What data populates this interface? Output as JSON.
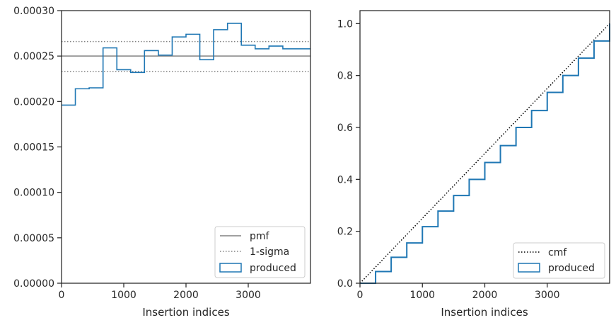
{
  "chart_data": [
    {
      "type": "step",
      "xlabel": "Insertion indices",
      "xlim": [
        0,
        4000
      ],
      "ylim": [
        0,
        0.0003
      ],
      "xticks": [
        0,
        1000,
        2000,
        3000
      ],
      "xtick_labels": [
        "0",
        "1000",
        "2000",
        "3000"
      ],
      "yticks": [
        0,
        5e-05,
        0.0001,
        0.00015,
        0.0002,
        0.00025,
        0.0003
      ],
      "ytick_labels": [
        "0.00000",
        "0.00005",
        "0.00010",
        "0.00015",
        "0.00020",
        "0.00025",
        "0.00030"
      ],
      "reference_lines": [
        {
          "name": "pmf",
          "y": 0.00025,
          "style": "solid",
          "color": "#808080"
        },
        {
          "name": "1-sigma",
          "y": 0.000266,
          "style": "dotted",
          "color": "#808080"
        },
        {
          "name": "1-sigma",
          "y": 0.000233,
          "style": "dotted",
          "color": "#808080"
        }
      ],
      "series": [
        {
          "name": "produced",
          "color": "#1f77b4",
          "bin_edges": [
            0,
            222,
            444,
            667,
            889,
            1111,
            1333,
            1556,
            1778,
            2000,
            2222,
            2444,
            2667,
            2889,
            3111,
            3333,
            3556,
            3778,
            4000
          ],
          "values": [
            0.000196,
            0.000214,
            0.000215,
            0.000259,
            0.000235,
            0.000232,
            0.000256,
            0.000251,
            0.000271,
            0.000274,
            0.000246,
            0.000279,
            0.000286,
            0.000262,
            0.000258,
            0.000261,
            0.000258,
            0.000258
          ]
        }
      ],
      "legend": {
        "placement": "lower-right",
        "entries": [
          "pmf",
          "1-sigma",
          "produced"
        ]
      },
      "grid": false
    },
    {
      "type": "line",
      "xlabel": "Insertion indices",
      "xlim": [
        0,
        4000
      ],
      "ylim": [
        0,
        1.05
      ],
      "xticks": [
        0,
        1000,
        2000,
        3000
      ],
      "xtick_labels": [
        "0",
        "1000",
        "2000",
        "3000"
      ],
      "yticks": [
        0,
        0.2,
        0.4,
        0.6,
        0.8,
        1.0
      ],
      "ytick_labels": [
        "0.0",
        "0.2",
        "0.4",
        "0.6",
        "0.8",
        "1.0"
      ],
      "series": [
        {
          "name": "cmf",
          "color": "#000000",
          "style": "dotted",
          "x": [
            0,
            4000
          ],
          "y": [
            0,
            1.0
          ]
        },
        {
          "name": "produced",
          "color": "#1f77b4",
          "style": "step",
          "x": [
            0,
            250,
            500,
            750,
            1000,
            1250,
            1500,
            1750,
            2000,
            2250,
            2500,
            2750,
            3000,
            3250,
            3500,
            3750,
            4000
          ],
          "y": [
            0,
            0.045,
            0.1,
            0.155,
            0.218,
            0.278,
            0.338,
            0.4,
            0.465,
            0.53,
            0.6,
            0.665,
            0.735,
            0.8,
            0.867,
            0.933,
            1.0
          ]
        }
      ],
      "legend": {
        "placement": "lower-right",
        "entries": [
          "cmf",
          "produced"
        ]
      },
      "grid": false
    }
  ]
}
